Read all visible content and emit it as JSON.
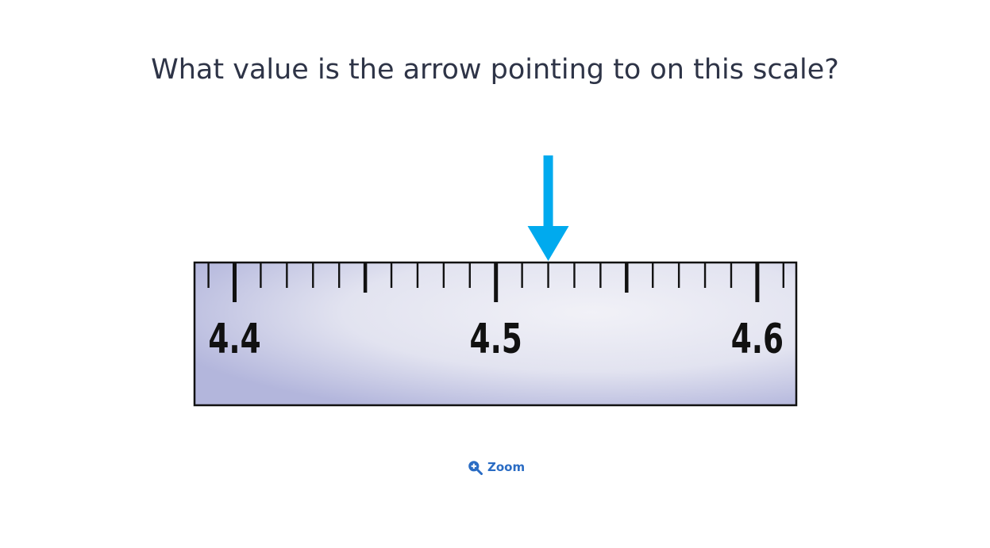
{
  "question": {
    "text": "What value is the arrow pointing to on this scale?"
  },
  "scale": {
    "labels": [
      "4.4",
      "4.5",
      "4.6"
    ],
    "major_values": [
      4.4,
      4.5,
      4.6
    ],
    "min_visible": 4.39,
    "max_visible": 4.61,
    "minor_step": 0.01,
    "mid_step": 0.05,
    "arrow_value": 4.52
  },
  "colors": {
    "arrow": "#00aaee",
    "ruler_border": "#111111",
    "ruler_gradient_light": "#f1f1f7",
    "ruler_gradient_dark": "#b3b6dc",
    "text": "#2e3447",
    "link": "#2a6cc4"
  },
  "zoom": {
    "label": "Zoom",
    "icon": "zoom-in-icon"
  }
}
